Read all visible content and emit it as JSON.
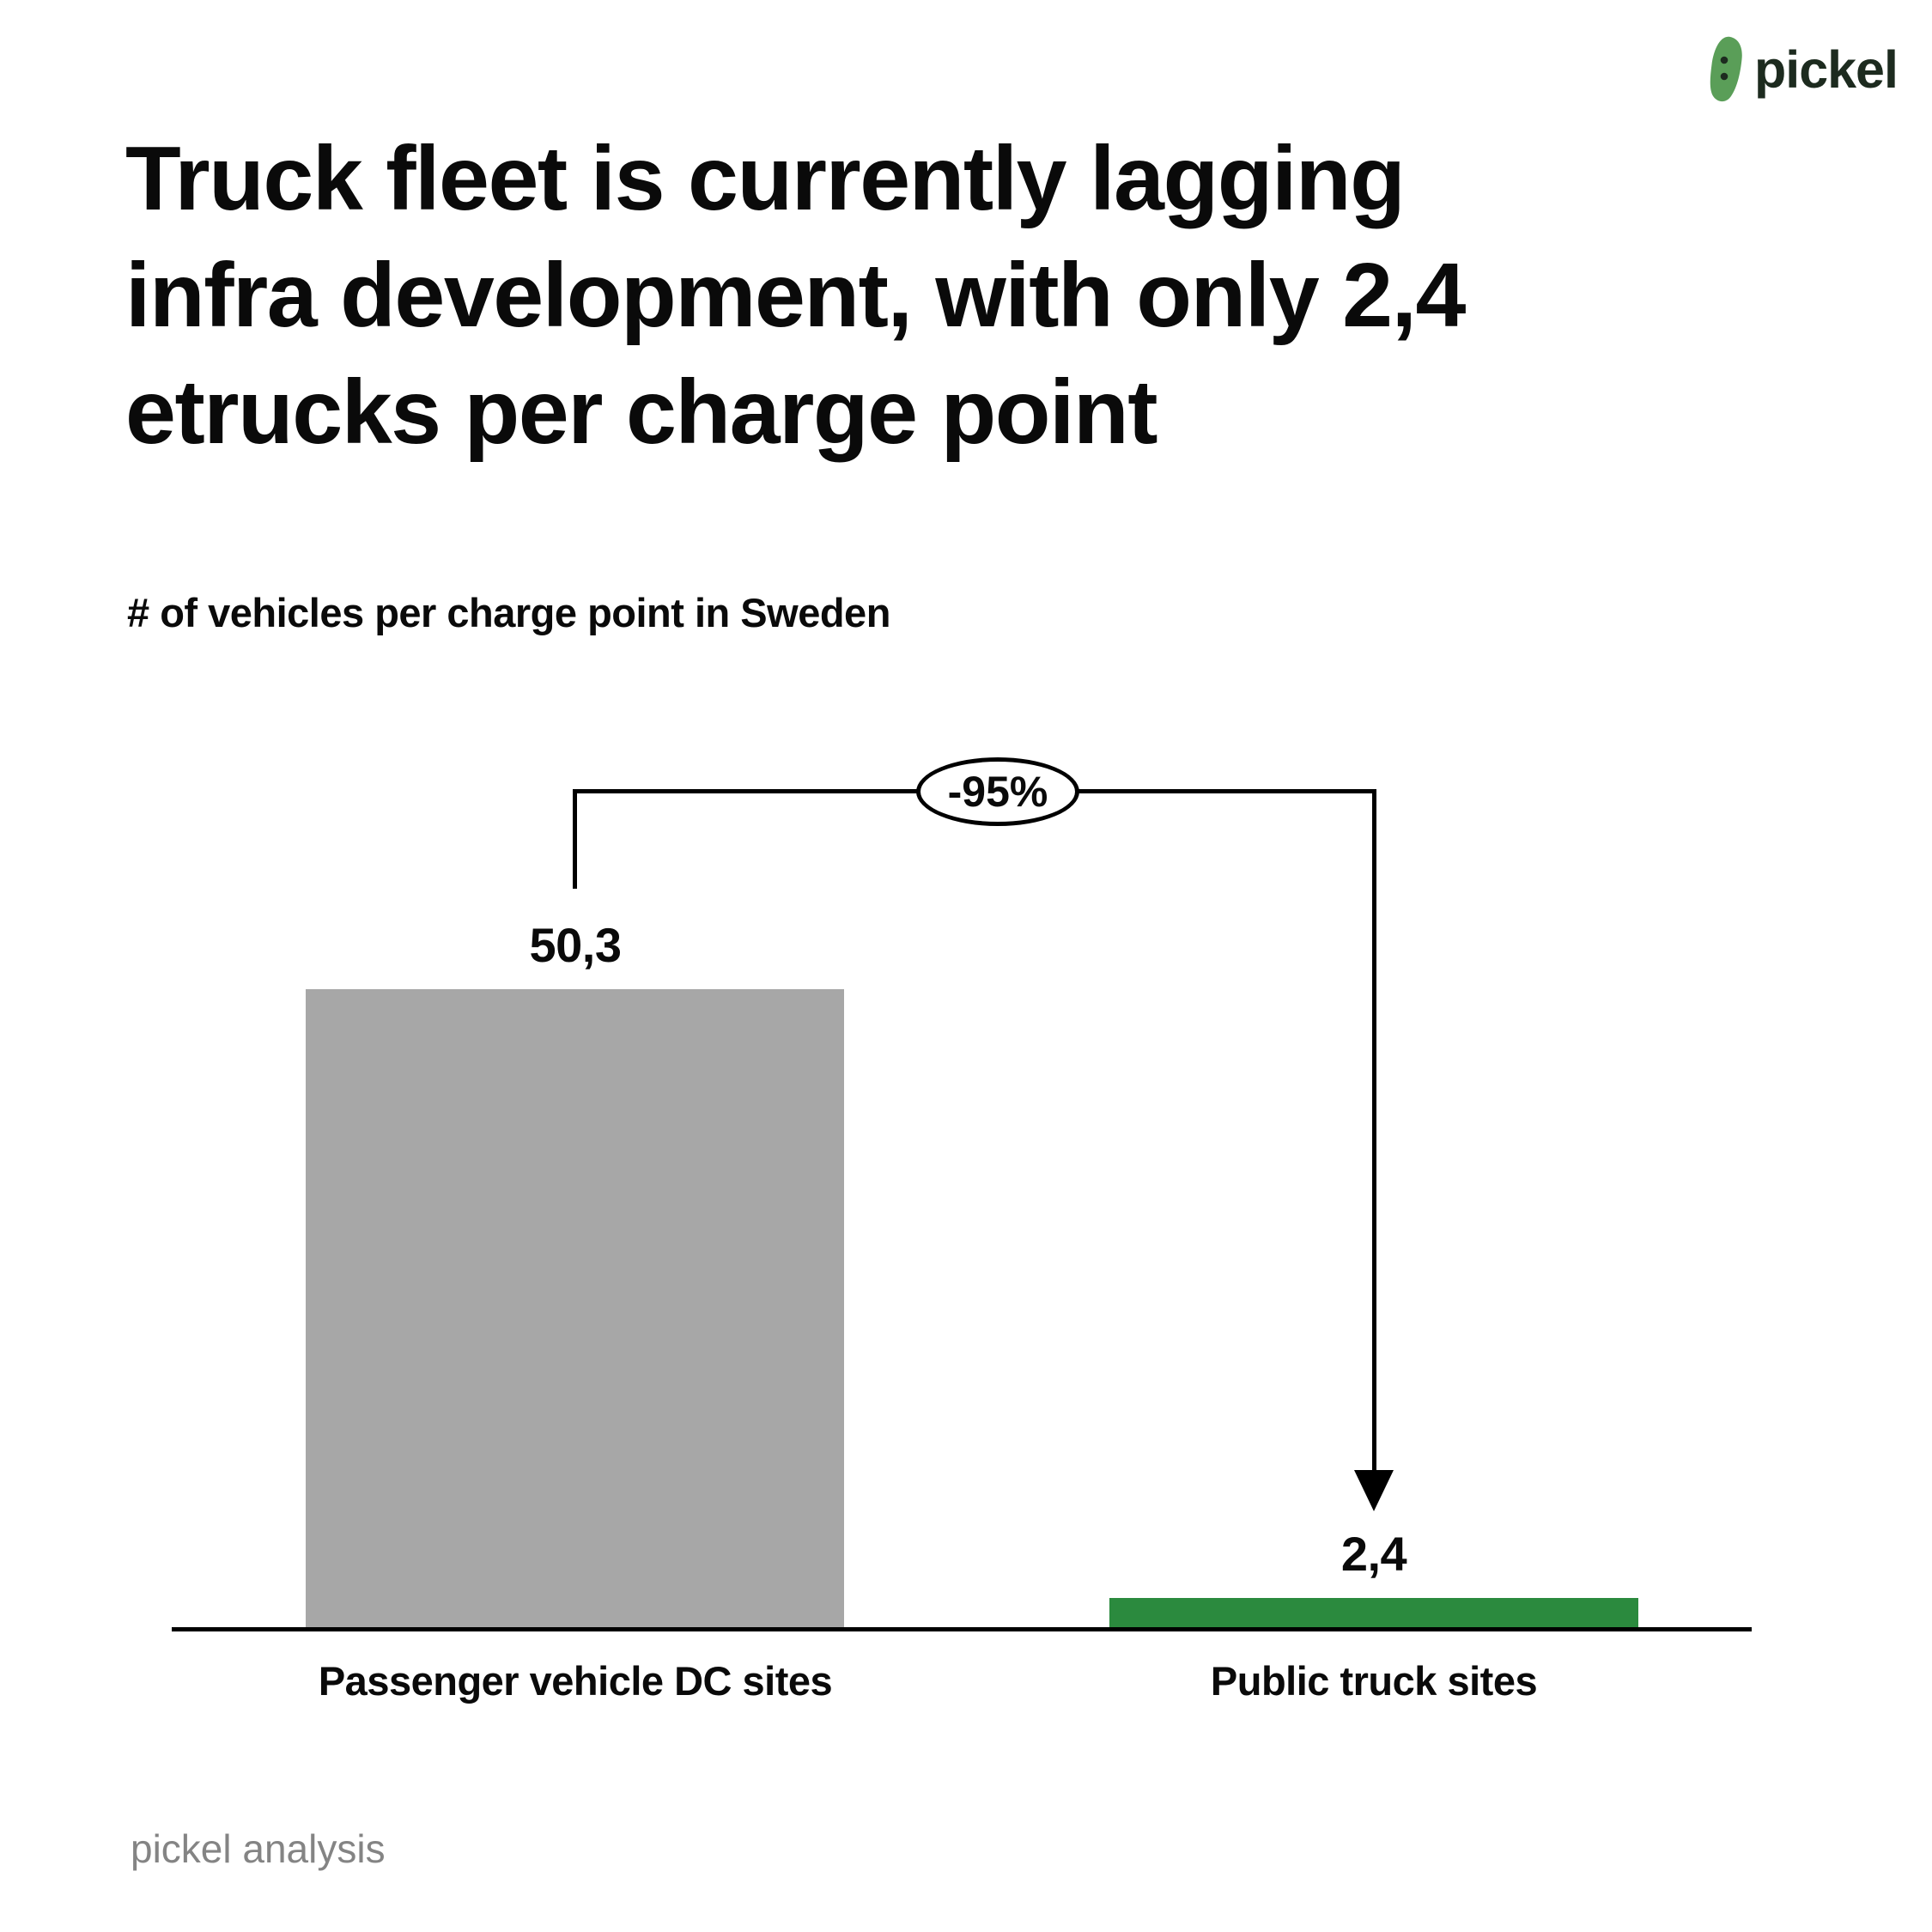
{
  "logo": {
    "brand": "pickel",
    "icon": "pickle-bean-icon"
  },
  "title": "Truck fleet is currently lagging\ninfra development, with only 2,4\netrucks per charge point",
  "subtitle": "# of vehicles per charge point in Sweden",
  "footer": "pickel analysis",
  "colors": {
    "text_black": "#0a0a0a",
    "bar_gray": "#A7A7A7",
    "bar_green": "#2B8A3E",
    "logo_green": "#5A9E58",
    "logo_text": "#1D2B1F",
    "footer_gray": "#848484",
    "line_black": "#000000"
  },
  "chart_data": {
    "type": "bar",
    "title": "# of vehicles per charge point in Sweden",
    "categories": [
      "Passenger vehicle DC sites",
      "Public truck sites"
    ],
    "values": [
      50.3,
      2.4
    ],
    "value_labels": [
      "50,3",
      "2,4"
    ],
    "bar_colors": [
      "#A7A7A7",
      "#2B8A3E"
    ],
    "annotation": {
      "label": "-95%",
      "from": "Passenger vehicle DC sites",
      "to": "Public truck sites"
    },
    "ylim": [
      0,
      55
    ],
    "xlabel": "",
    "ylabel": "",
    "grid": false,
    "legend": "none",
    "axis": "x-baseline-only"
  }
}
